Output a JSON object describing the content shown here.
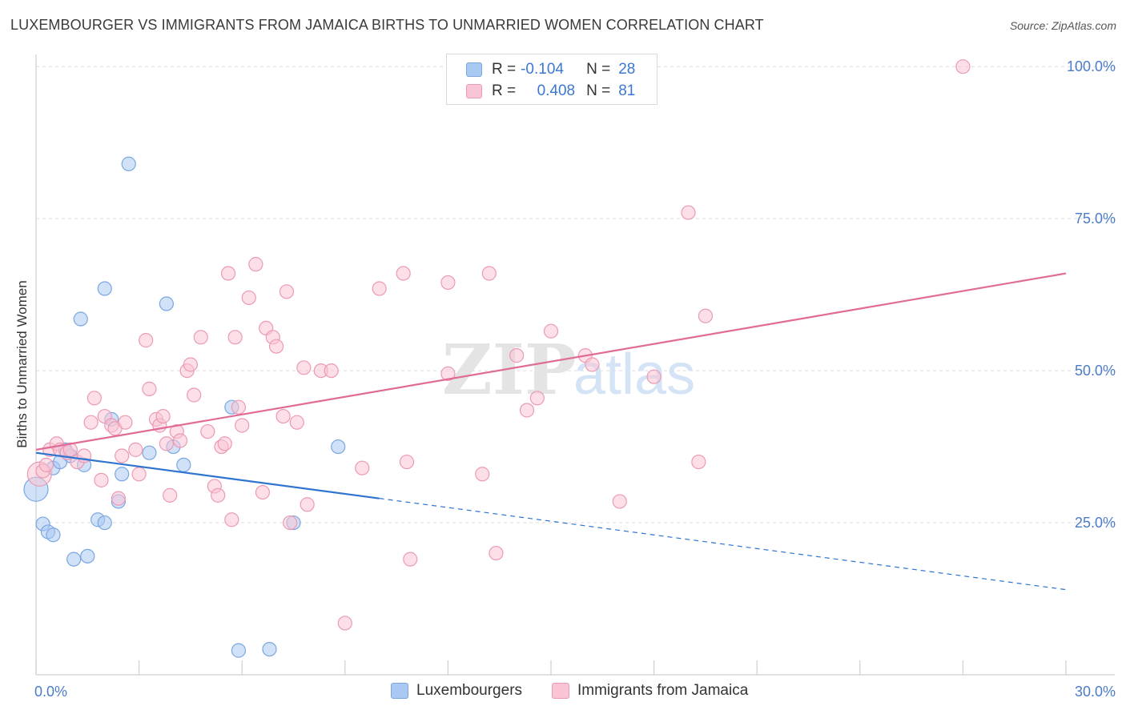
{
  "header": {
    "title": "LUXEMBOURGER VS IMMIGRANTS FROM JAMAICA BIRTHS TO UNMARRIED WOMEN CORRELATION CHART",
    "source": "Source: ZipAtlas.com"
  },
  "watermark": {
    "zip": "ZIP",
    "atlas": "atlas"
  },
  "legend": {
    "rows": [
      {
        "r_label": "R =",
        "r_value": "-0.104",
        "n_label": "N =",
        "n_value": "28",
        "color": "#a9c8f2",
        "border": "#7aa7e0"
      },
      {
        "r_label": "R =",
        "r_value": "0.408",
        "n_label": "N =",
        "n_value": "81",
        "color": "#f9c4d4",
        "border": "#ec9ab4"
      }
    ]
  },
  "bottom_legend": {
    "items": [
      {
        "label": "Luxembourgers",
        "color": "#a9c8f2",
        "border": "#7aa7e0"
      },
      {
        "label": "Immigrants from Jamaica",
        "color": "#f9c4d4",
        "border": "#ec9ab4"
      }
    ]
  },
  "colors": {
    "blue_fill": "#a9c8f2",
    "blue_stroke": "#7aa7e0",
    "blue_line": "#2f74d0",
    "pink_fill": "#f9c4d4",
    "pink_stroke": "#ec9ab4",
    "pink_line": "#e06b96",
    "grid": "#dcdcdc",
    "tick_text": "#4a7cc9"
  },
  "chart_data": {
    "type": "scatter",
    "title": "LUXEMBOURGER VS IMMIGRANTS FROM JAMAICA BIRTHS TO UNMARRIED WOMEN CORRELATION CHART",
    "xlabel": "",
    "ylabel": "Births to Unmarried Women",
    "xlim": [
      0,
      30
    ],
    "ylim": [
      0,
      102
    ],
    "x_tick_labels": [
      {
        "value": 0,
        "label": "0.0%"
      },
      {
        "value": 30,
        "label": "30.0%"
      }
    ],
    "y_tick_labels": [
      {
        "value": 25,
        "label": "25.0%"
      },
      {
        "value": 50,
        "label": "50.0%"
      },
      {
        "value": 75,
        "label": "75.0%"
      },
      {
        "value": 100,
        "label": "100.0%"
      }
    ],
    "x_minor_ticks": [
      0,
      3,
      6,
      9,
      12,
      15,
      18,
      21,
      24,
      27,
      30
    ],
    "grid_y": [
      25,
      50,
      75,
      100
    ],
    "series": [
      {
        "name": "Luxembourgers",
        "R": -0.104,
        "N": 28,
        "points": [
          [
            0.0,
            30.5
          ],
          [
            0.2,
            24.8
          ],
          [
            0.35,
            23.5
          ],
          [
            0.5,
            23.0
          ],
          [
            0.5,
            34.0
          ],
          [
            0.7,
            35.0
          ],
          [
            0.85,
            37.0
          ],
          [
            1.0,
            36.0
          ],
          [
            1.1,
            19.0
          ],
          [
            1.4,
            34.5
          ],
          [
            1.5,
            19.5
          ],
          [
            1.8,
            25.5
          ],
          [
            2.0,
            25.0
          ],
          [
            2.2,
            42.0
          ],
          [
            2.4,
            28.5
          ],
          [
            2.5,
            33.0
          ],
          [
            2.7,
            84.0
          ],
          [
            2.0,
            63.5
          ],
          [
            1.3,
            58.5
          ],
          [
            3.3,
            36.5
          ],
          [
            4.0,
            37.5
          ],
          [
            4.3,
            34.5
          ],
          [
            3.8,
            61.0
          ],
          [
            5.7,
            44.0
          ],
          [
            5.9,
            4.0
          ],
          [
            6.8,
            4.2
          ],
          [
            7.5,
            25.0
          ],
          [
            8.8,
            37.5
          ]
        ],
        "trend": {
          "x0": 0.0,
          "y0": 36.5,
          "x1": 10.0,
          "y1": 29.0,
          "dash_to_x": 30.0,
          "dash_to_y": 14.0
        }
      },
      {
        "name": "Immigrants from Jamaica",
        "R": 0.408,
        "N": 81,
        "points": [
          [
            0.1,
            33.0
          ],
          [
            0.2,
            33.5
          ],
          [
            0.3,
            34.5
          ],
          [
            0.4,
            37.0
          ],
          [
            0.6,
            38.0
          ],
          [
            0.7,
            37.0
          ],
          [
            0.9,
            36.5
          ],
          [
            1.0,
            37.0
          ],
          [
            1.2,
            35.0
          ],
          [
            1.4,
            36.0
          ],
          [
            1.6,
            41.5
          ],
          [
            1.7,
            45.5
          ],
          [
            1.9,
            32.0
          ],
          [
            2.0,
            42.5
          ],
          [
            2.2,
            41.0
          ],
          [
            2.3,
            40.5
          ],
          [
            2.4,
            29.0
          ],
          [
            2.5,
            36.0
          ],
          [
            2.6,
            41.5
          ],
          [
            2.9,
            37.0
          ],
          [
            3.0,
            33.0
          ],
          [
            3.2,
            55.0
          ],
          [
            3.3,
            47.0
          ],
          [
            3.5,
            42.0
          ],
          [
            3.6,
            41.0
          ],
          [
            3.7,
            42.5
          ],
          [
            3.8,
            38.0
          ],
          [
            3.9,
            29.5
          ],
          [
            4.1,
            40.0
          ],
          [
            4.2,
            38.5
          ],
          [
            4.4,
            50.0
          ],
          [
            4.5,
            51.0
          ],
          [
            4.6,
            46.0
          ],
          [
            4.8,
            55.5
          ],
          [
            5.0,
            40.0
          ],
          [
            5.2,
            31.0
          ],
          [
            5.3,
            29.5
          ],
          [
            5.4,
            37.5
          ],
          [
            5.5,
            38.0
          ],
          [
            5.6,
            66.0
          ],
          [
            5.7,
            25.5
          ],
          [
            5.8,
            55.5
          ],
          [
            5.9,
            44.0
          ],
          [
            6.0,
            41.0
          ],
          [
            6.2,
            62.0
          ],
          [
            6.4,
            67.5
          ],
          [
            6.6,
            30.0
          ],
          [
            6.7,
            57.0
          ],
          [
            6.9,
            55.5
          ],
          [
            7.0,
            54.0
          ],
          [
            7.2,
            42.5
          ],
          [
            7.3,
            63.0
          ],
          [
            7.4,
            25.0
          ],
          [
            7.6,
            41.5
          ],
          [
            7.8,
            50.5
          ],
          [
            7.9,
            28.0
          ],
          [
            8.3,
            50.0
          ],
          [
            8.6,
            50.0
          ],
          [
            9.0,
            8.5
          ],
          [
            9.5,
            34.0
          ],
          [
            10.0,
            63.5
          ],
          [
            10.8,
            35.0
          ],
          [
            10.9,
            19.0
          ],
          [
            12.0,
            49.5
          ],
          [
            12.0,
            64.5
          ],
          [
            13.0,
            33.0
          ],
          [
            13.2,
            66.0
          ],
          [
            13.4,
            20.0
          ],
          [
            14.0,
            52.5
          ],
          [
            14.3,
            43.5
          ],
          [
            14.6,
            45.5
          ],
          [
            15.0,
            56.5
          ],
          [
            16.0,
            52.5
          ],
          [
            16.2,
            51.0
          ],
          [
            17.0,
            28.5
          ],
          [
            18.0,
            49.0
          ],
          [
            19.0,
            76.0
          ],
          [
            19.5,
            59.0
          ],
          [
            19.3,
            35.0
          ],
          [
            27.0,
            100.0
          ],
          [
            10.7,
            66.0
          ]
        ],
        "trend": {
          "x0": 0.0,
          "y0": 37.0,
          "x1": 30.0,
          "y1": 66.0
        }
      }
    ]
  }
}
